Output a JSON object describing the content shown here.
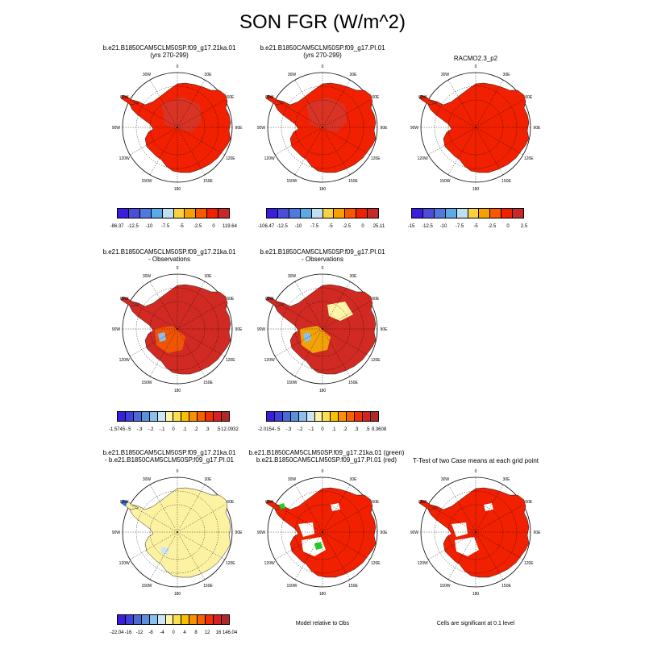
{
  "title": "SON FGR (W/m^2)",
  "panels": [
    {
      "title1": "b.e21.B1850CAM5CLM50SP.f09_g17.21ka.01",
      "title2": "(yrs 270-299)"
    },
    {
      "title1": "b.e21.B1850CAM5CLM50SP.f09_g17.PI.01",
      "title2": "(yrs 270-299)"
    },
    {
      "title1": "RACMO2.3_p2",
      "title2": ""
    },
    {
      "title1": "b.e21.B1850CAM5CLM50SP.f09_g17.21ka.01",
      "title2": "- Observations"
    },
    {
      "title1": "b.e21.B1850CAM5CLM50SP.f09_g17.PI.01",
      "title2": "- Observations"
    },
    {
      "title1": "b.e21.B1850CAM5CLM50SP.f09_g17.21ka.01",
      "title2": "- b.e21.B1850CAM5CLM50SP.f09_g17.PI.01"
    },
    {
      "title1": "b.e21.B1850CAM5CLM50SP.f09_g17.21ka.01 (green)",
      "title2": "b.e21.B1850CAM5CLM50SP.f09_g17.PI.01 (red)"
    },
    {
      "title1": "T-Test of two Case means at each grid point",
      "title2": ""
    }
  ],
  "lon_labels": [
    "0",
    "30E",
    "60E",
    "90E",
    "120E",
    "150E",
    "180",
    "150W",
    "120W",
    "90W",
    "60W",
    "30W"
  ],
  "colorbars": [
    {
      "colors": [
        "#3a1ee0",
        "#4a4ed8",
        "#5079e0",
        "#5aaae8",
        "#bfe0f0",
        "#f8d040",
        "#f8a000",
        "#f85800",
        "#f02000",
        "#c82828"
      ],
      "labels": [
        "-86.37",
        "-12.5",
        "-10",
        "-7.5",
        "-5",
        "-2.5",
        "0",
        "119.64"
      ]
    },
    {
      "colors": [
        "#3a1ee0",
        "#4a4ed8",
        "#5079e0",
        "#5aaae8",
        "#bfe0f0",
        "#f8d040",
        "#f8a000",
        "#f85800",
        "#f02000",
        "#c82828"
      ],
      "labels": [
        "-106.47",
        "-12.5",
        "-10",
        "-7.5",
        "-5",
        "-2.5",
        "0",
        "25.11"
      ]
    },
    {
      "colors": [
        "#3a1ee0",
        "#4a4ed8",
        "#5079e0",
        "#5aaae8",
        "#bfe0f0",
        "#f8d040",
        "#f8a000",
        "#f85800",
        "#f02000",
        "#c82828"
      ],
      "labels": [
        "-15",
        "-12.5",
        "-10",
        "-7.5",
        "-5",
        "-2.5",
        "0",
        "2.5"
      ]
    },
    {
      "colors": [
        "#3a1ee0",
        "#3f3fe0",
        "#4a6ad8",
        "#5a90e0",
        "#8ac0ec",
        "#cce6f4",
        "#fff4a8",
        "#f8e050",
        "#f8c000",
        "#f89000",
        "#f86000",
        "#f03000",
        "#d82020",
        "#b02828"
      ],
      "labels": [
        "-1.5745",
        "-.5",
        "-.3",
        "-.2",
        "-.1",
        "0",
        ".1",
        ".2",
        ".3",
        ".5",
        "12.0932"
      ]
    },
    {
      "colors": [
        "#3a1ee0",
        "#3f3fe0",
        "#4a6ad8",
        "#5a90e0",
        "#8ac0ec",
        "#cce6f4",
        "#fff4a8",
        "#f8e050",
        "#f8c000",
        "#f89000",
        "#f86000",
        "#f03000",
        "#d82020",
        "#b02828"
      ],
      "labels": [
        "-2.0154",
        "-.5",
        "-.3",
        "-.2",
        "-.1",
        "0",
        ".1",
        ".2",
        ".3",
        ".5",
        "9.3608"
      ]
    },
    {
      "colors": [
        "#3a1ee0",
        "#3f3fe0",
        "#4a6ad8",
        "#5a90e0",
        "#8ac0ec",
        "#cce6f4",
        "#fff4a8",
        "#f8e050",
        "#f8c000",
        "#f89000",
        "#f86000",
        "#f03000",
        "#d82020",
        "#b02828"
      ],
      "labels": [
        "-22.04",
        "-16",
        "-12",
        "-8",
        "-4",
        "0",
        "4",
        "8",
        "12",
        "16",
        "146.04"
      ]
    }
  ],
  "notes": [
    "Model relative to Obs",
    "Cells are significant at 0.1 level"
  ]
}
